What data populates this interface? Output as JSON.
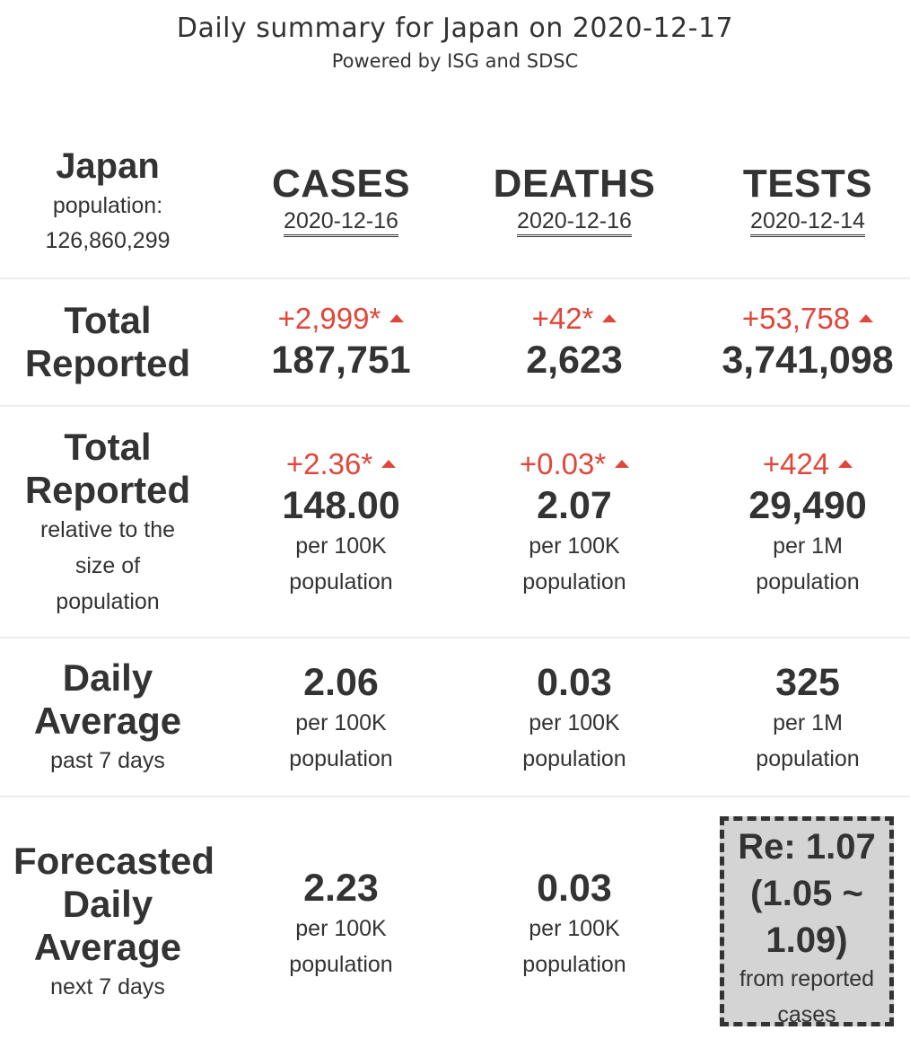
{
  "header": {
    "title": "Daily summary for Japan on 2020-12-17",
    "subtitle": "Powered by ISG and SDSC"
  },
  "country": {
    "name": "Japan",
    "population_label": "population:",
    "population": "126,860,299"
  },
  "columns": [
    {
      "metric": "CASES",
      "date": "2020-12-16"
    },
    {
      "metric": "DEATHS",
      "date": "2020-12-16"
    },
    {
      "metric": "TESTS",
      "date": "2020-12-14"
    }
  ],
  "rows": {
    "total": {
      "label_line1": "Total",
      "label_line2": "Reported",
      "values": [
        {
          "delta": "+2,999*",
          "value": "187,751"
        },
        {
          "delta": "+42*",
          "value": "2,623"
        },
        {
          "delta": "+53,758",
          "value": "3,741,098"
        }
      ]
    },
    "relative": {
      "label_line1": "Total",
      "label_line2": "Reported",
      "note_line1": "relative to the",
      "note_line2": "size of",
      "note_line3": "population",
      "values": [
        {
          "delta": "+2.36*",
          "value": "148.00",
          "unit1": "per 100K",
          "unit2": "population"
        },
        {
          "delta": "+0.03*",
          "value": "2.07",
          "unit1": "per 100K",
          "unit2": "population"
        },
        {
          "delta": "+424",
          "value": "29,490",
          "unit1": "per 1M",
          "unit2": "population"
        }
      ]
    },
    "daily": {
      "label_line1": "Daily",
      "label_line2": "Average",
      "note": "past 7 days",
      "values": [
        {
          "value": "2.06",
          "unit1": "per 100K",
          "unit2": "population"
        },
        {
          "value": "0.03",
          "unit1": "per 100K",
          "unit2": "population"
        },
        {
          "value": "325",
          "unit1": "per 1M",
          "unit2": "population"
        }
      ]
    },
    "forecast": {
      "label_line1": "Forecasted",
      "label_line2": "Daily",
      "label_line3": "Average",
      "note": "next 7 days",
      "values": [
        {
          "value": "2.23",
          "unit1": "per 100K",
          "unit2": "population"
        },
        {
          "value": "0.03",
          "unit1": "per 100K",
          "unit2": "population"
        }
      ],
      "re": {
        "line1": "Re: 1.07",
        "line2": "(1.05 ~",
        "line3": "1.09)",
        "sub1": "from reported",
        "sub2": "cases"
      }
    }
  },
  "colors": {
    "text": "#333333",
    "increase": "#e0463a",
    "re_background": "#d4d4d4",
    "divider": "#ececec"
  }
}
